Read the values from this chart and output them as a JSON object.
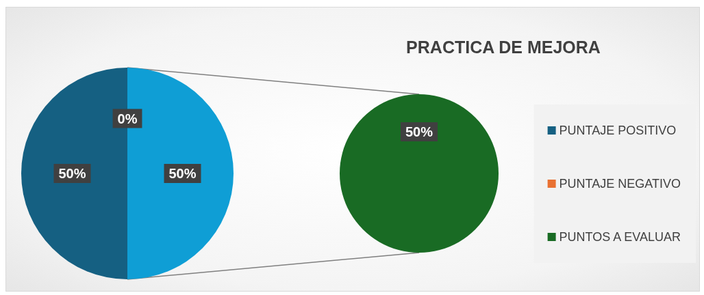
{
  "chart_data": [
    {
      "type": "pie",
      "categories": [
        "PUNTAJE POSITIVO",
        "PUNTAJE NEGATIVO",
        null
      ],
      "values": [
        50,
        0,
        50
      ],
      "colors": [
        "#156082",
        "#e97132",
        "#0f9ed5"
      ],
      "value_labels": [
        "50%",
        "0%",
        "50%"
      ]
    },
    {
      "type": "pie",
      "title": "PRACTICA DE MEJORA",
      "categories": [
        "PUNTOS A EVALUAR"
      ],
      "values": [
        50
      ],
      "colors": [
        "#196b24"
      ],
      "value_labels": [
        "50%"
      ],
      "legend": "right"
    }
  ]
}
